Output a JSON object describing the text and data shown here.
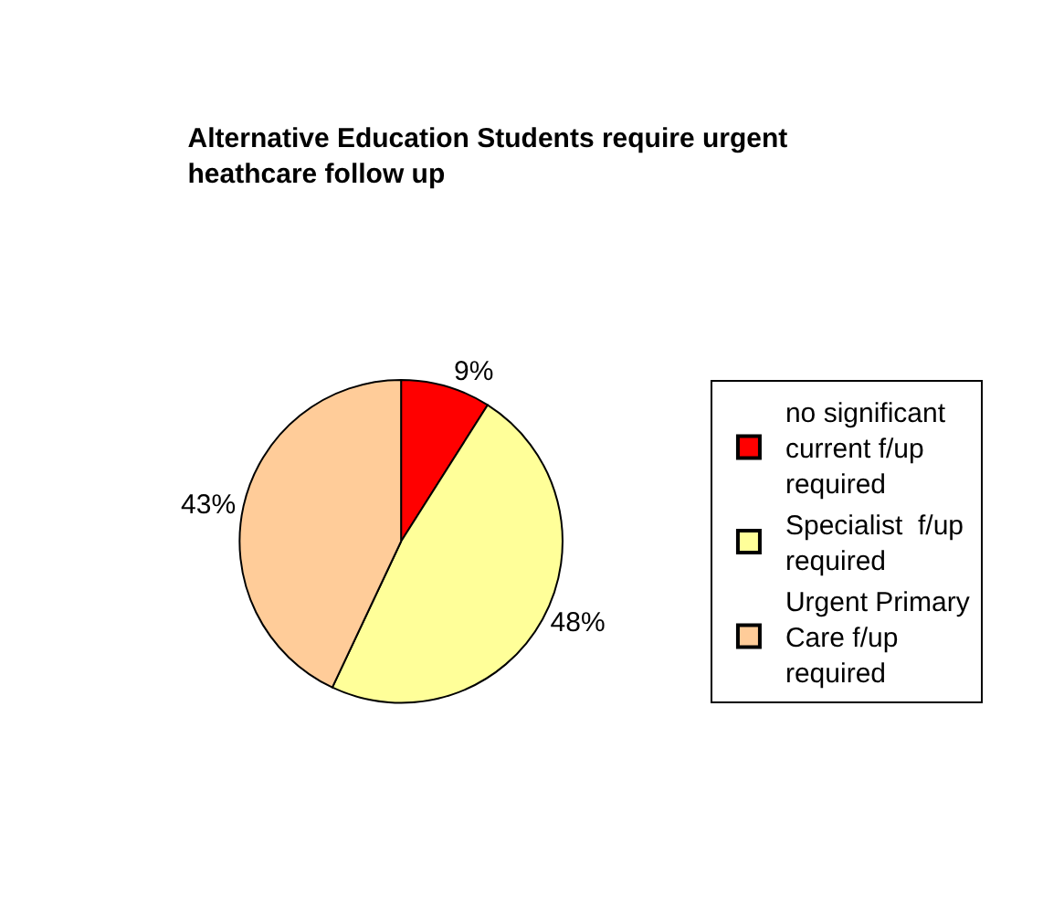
{
  "chart_data": {
    "type": "pie",
    "title": "Alternative Education Students require urgent heathcare follow up",
    "categories": [
      "no significant current f/up required",
      "Specialist  f/up required",
      "Urgent Primary Care f/up required"
    ],
    "values": [
      9,
      48,
      43
    ],
    "value_labels": [
      "9%",
      "48%",
      "43%"
    ],
    "colors": [
      "#ff0000",
      "#ffff99",
      "#ffcc99"
    ],
    "legend": "right"
  }
}
